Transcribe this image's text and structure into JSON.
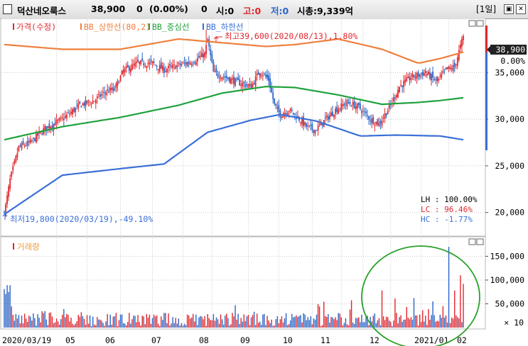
{
  "header": {
    "name": "덕산네오룩스",
    "price": "38,900",
    "change": "0",
    "change_pct": "(0.00%)",
    "open_label": "시:0",
    "high_label": "고:0",
    "low_label": "저:0",
    "volume_text": "0",
    "mktcap_text": "시총:9,339억",
    "period_button": "1일"
  },
  "legend": {
    "price": "가격(수정)",
    "bb_upper": "BB_상한선(80,2)",
    "bb_mid": "BB_중심선",
    "bb_lower": "BB_하한선",
    "volume": "거래량"
  },
  "annotations": {
    "high": "최고39,600(2020/08/13),1.80%",
    "low": "최저19,800(2020/03/19),-49.10%"
  },
  "stats": {
    "lh": "LH : 100.00%",
    "lc": "LC :  96.46%",
    "hc": "HC :  -1.77%"
  },
  "price_axis": {
    "ticks": [
      "35,000",
      "30,000",
      "25,000",
      "20,000"
    ],
    "current_price": "38,900",
    "current_pct": "0.00%"
  },
  "volume_axis": {
    "ticks": [
      "150,000",
      "100,000",
      "50,000"
    ],
    "unit": "× 10"
  },
  "x_axis": {
    "ticks": [
      "2020/03/19",
      "05",
      "06",
      "07",
      "08",
      "09",
      "10",
      "11",
      "12",
      "2021/01",
      "02"
    ]
  },
  "colors": {
    "up": "#e2262c",
    "down": "#2b65c6",
    "bb_upper": "#ef7f3c",
    "bb_mid": "#1fa23c",
    "bb_lower": "#3a6fd8",
    "highlight_ellipse": "#2aa02a"
  },
  "chart_data": {
    "type": "candlestick",
    "period": "daily",
    "start": "2020/03/19",
    "end": "2021/02",
    "price_ylim": [
      18000,
      40500
    ],
    "volume_ylim": [
      0,
      185000
    ],
    "price_ticks": [
      20000,
      25000,
      30000,
      35000
    ],
    "volume_ticks": [
      50000,
      100000,
      150000
    ],
    "high": {
      "value": 39600,
      "date": "2020/08/13"
    },
    "low": {
      "value": 19800,
      "date": "2020/03/19"
    },
    "last": 38900,
    "close_path": [
      [
        0,
        19800
      ],
      [
        4,
        23500
      ],
      [
        10,
        27000
      ],
      [
        18,
        27500
      ],
      [
        28,
        29000
      ],
      [
        40,
        30000
      ],
      [
        52,
        31500
      ],
      [
        62,
        32000
      ],
      [
        70,
        33000
      ],
      [
        76,
        33200
      ],
      [
        82,
        35200
      ],
      [
        92,
        36000
      ],
      [
        102,
        36000
      ],
      [
        110,
        35300
      ],
      [
        120,
        35800
      ],
      [
        130,
        36200
      ],
      [
        138,
        37000
      ],
      [
        140,
        38500
      ],
      [
        144,
        35000
      ],
      [
        152,
        34500
      ],
      [
        160,
        34000
      ],
      [
        170,
        33500
      ],
      [
        176,
        35200
      ],
      [
        182,
        34200
      ],
      [
        186,
        31500
      ],
      [
        190,
        30500
      ],
      [
        196,
        31000
      ],
      [
        202,
        30200
      ],
      [
        208,
        29200
      ],
      [
        214,
        28800
      ],
      [
        220,
        29800
      ],
      [
        228,
        31000
      ],
      [
        236,
        31800
      ],
      [
        244,
        31300
      ],
      [
        252,
        30000
      ],
      [
        258,
        29500
      ],
      [
        266,
        31500
      ],
      [
        272,
        33500
      ],
      [
        280,
        34500
      ],
      [
        290,
        35000
      ],
      [
        298,
        34000
      ],
      [
        304,
        35300
      ],
      [
        310,
        35600
      ],
      [
        316,
        38900
      ]
    ],
    "bb_upper_path": [
      [
        0,
        38000
      ],
      [
        40,
        37500
      ],
      [
        80,
        37500
      ],
      [
        120,
        38600
      ],
      [
        150,
        38200
      ],
      [
        180,
        37800
      ],
      [
        200,
        38000
      ],
      [
        230,
        38600
      ],
      [
        260,
        37500
      ],
      [
        285,
        36000
      ],
      [
        300,
        36500
      ],
      [
        316,
        37200
      ]
    ],
    "bb_mid_path": [
      [
        0,
        27800
      ],
      [
        40,
        29200
      ],
      [
        80,
        30200
      ],
      [
        120,
        31500
      ],
      [
        150,
        32800
      ],
      [
        180,
        33500
      ],
      [
        200,
        33400
      ],
      [
        230,
        32600
      ],
      [
        260,
        31600
      ],
      [
        285,
        31800
      ],
      [
        300,
        32000
      ],
      [
        316,
        32300
      ]
    ],
    "bb_lower_path": [
      [
        0,
        19800
      ],
      [
        40,
        24000
      ],
      [
        80,
        24700
      ],
      [
        110,
        25200
      ],
      [
        140,
        28600
      ],
      [
        170,
        29900
      ],
      [
        190,
        30500
      ],
      [
        215,
        29800
      ],
      [
        245,
        28200
      ],
      [
        270,
        28300
      ],
      [
        300,
        28200
      ],
      [
        316,
        27800
      ]
    ],
    "volume_highlights": [
      [
        260,
        78000
      ],
      [
        282,
        62000
      ],
      [
        295,
        55000
      ],
      [
        306,
        170000
      ],
      [
        310,
        78000
      ],
      [
        314,
        110000
      ],
      [
        316,
        92000
      ]
    ],
    "highlighted_region": "2020/12 – 2021/02"
  }
}
